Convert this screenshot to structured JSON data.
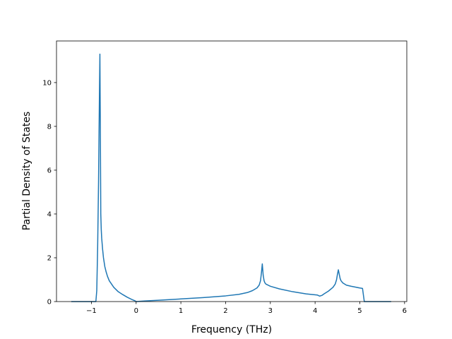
{
  "chart_data": {
    "type": "line",
    "title": "",
    "xlabel": "Frequency (THz)",
    "ylabel": "Partial Density of States",
    "xlim": [
      -1.78,
      6.05
    ],
    "ylim": [
      0,
      11.9
    ],
    "xticks": [
      -1,
      0,
      1,
      2,
      3,
      4,
      5,
      6
    ],
    "xtick_labels": [
      "−1",
      "0",
      "1",
      "2",
      "3",
      "4",
      "5",
      "6"
    ],
    "yticks": [
      0,
      2,
      4,
      6,
      8,
      10
    ],
    "ytick_labels": [
      "0",
      "2",
      "4",
      "6",
      "8",
      "10"
    ],
    "grid": false,
    "legend": "none",
    "line_color": "#1f77b4",
    "series": [
      {
        "x": [
          -1.45,
          -0.9,
          -0.88,
          -0.86,
          -0.84,
          -0.82,
          -0.81,
          -0.8,
          -0.79,
          -0.78,
          -0.77,
          -0.75,
          -0.73,
          -0.7,
          -0.67,
          -0.64,
          -0.6,
          -0.55,
          -0.5,
          -0.45,
          -0.4,
          -0.3,
          -0.2,
          -0.1,
          -0.02,
          0.0,
          0.2,
          0.5,
          1.0,
          1.5,
          2.0,
          2.3,
          2.5,
          2.6,
          2.7,
          2.75,
          2.78,
          2.8,
          2.82,
          2.84,
          2.86,
          2.88,
          2.9,
          3.0,
          3.2,
          3.5,
          3.8,
          4.05,
          4.1,
          4.15,
          4.2,
          4.3,
          4.4,
          4.45,
          4.48,
          4.5,
          4.52,
          4.54,
          4.56,
          4.58,
          4.62,
          4.7,
          4.8,
          4.9,
          5.0,
          5.06,
          5.08,
          5.1,
          5.3,
          5.5,
          5.7
        ],
        "y": [
          0,
          0,
          0.5,
          2.5,
          5.5,
          9.5,
          11.3,
          8.0,
          4.0,
          3.3,
          2.9,
          2.4,
          2.0,
          1.6,
          1.35,
          1.15,
          0.95,
          0.8,
          0.65,
          0.55,
          0.45,
          0.32,
          0.2,
          0.1,
          0.03,
          0.0,
          0.03,
          0.06,
          0.12,
          0.18,
          0.26,
          0.33,
          0.42,
          0.5,
          0.62,
          0.75,
          0.95,
          1.3,
          1.72,
          1.2,
          0.95,
          0.85,
          0.8,
          0.7,
          0.58,
          0.45,
          0.35,
          0.3,
          0.25,
          0.28,
          0.35,
          0.48,
          0.65,
          0.8,
          1.0,
          1.25,
          1.45,
          1.25,
          1.05,
          0.95,
          0.85,
          0.75,
          0.7,
          0.66,
          0.62,
          0.6,
          0.3,
          0.0,
          0,
          0,
          0
        ]
      }
    ]
  }
}
